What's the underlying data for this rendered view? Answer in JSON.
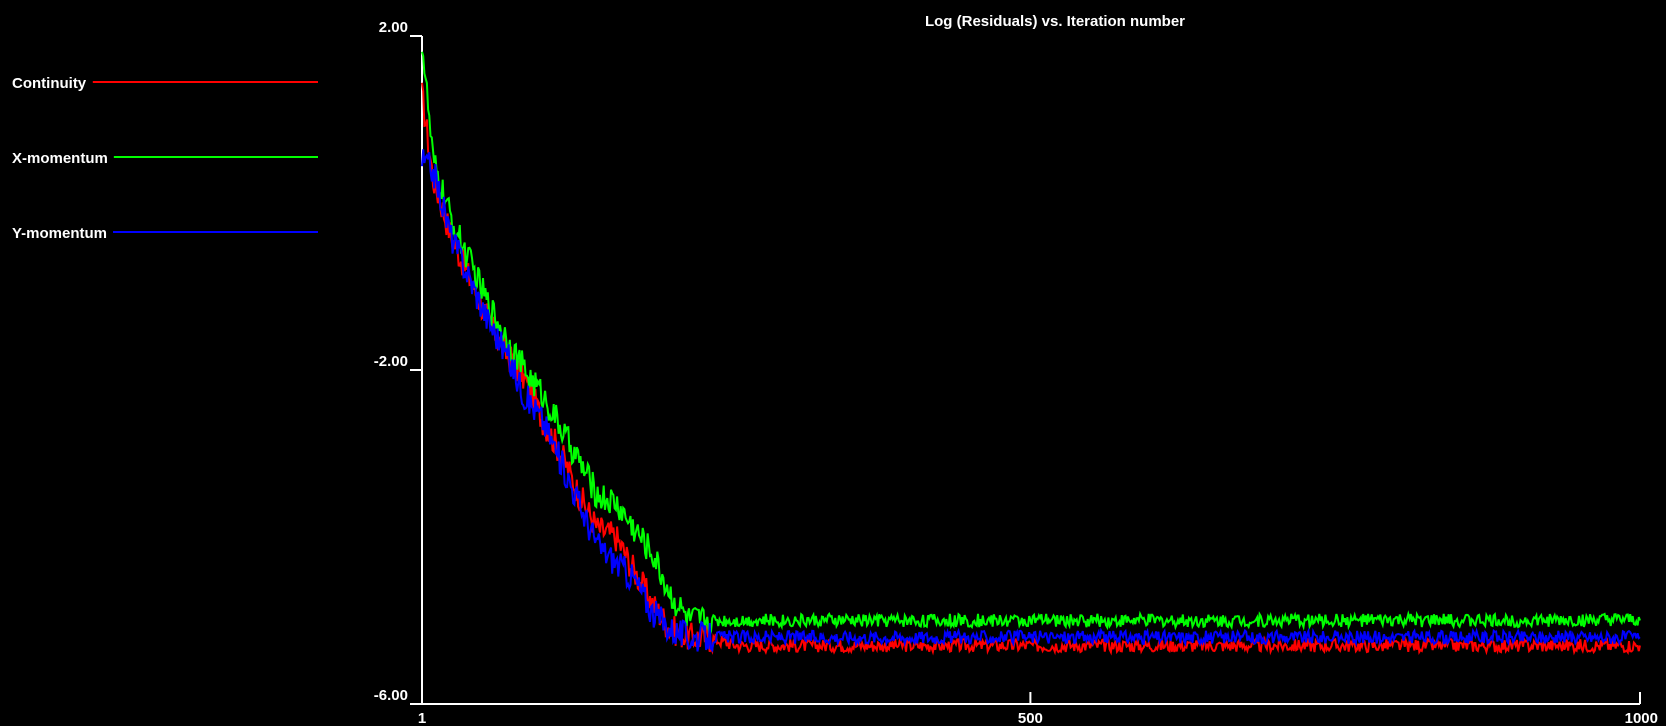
{
  "chart_data": {
    "type": "line",
    "title": "Log (Residuals) vs. Iteration number",
    "xlabel": "",
    "ylabel": "",
    "xlim": [
      1,
      1000
    ],
    "ylim": [
      -6.0,
      2.0
    ],
    "xticks": [
      "1",
      "500",
      "1000"
    ],
    "xtick_values": [
      1,
      500,
      1000
    ],
    "yticks": [
      "2.00",
      "-2.00",
      "-6.00"
    ],
    "ytick_values": [
      2.0,
      -2.0,
      -6.0
    ],
    "grid": false,
    "legend_position": "left",
    "background": "#000000",
    "axis_color": "#ffffff",
    "x": [
      1,
      10,
      25,
      40,
      55,
      70,
      85,
      100,
      115,
      130,
      145,
      160,
      175,
      190,
      205,
      220,
      235,
      260,
      300,
      350,
      400,
      450,
      500,
      550,
      600,
      650,
      700,
      750,
      800,
      850,
      900,
      950,
      1000
    ],
    "series": [
      {
        "name": "Continuity",
        "color": "#ff0000",
        "values": [
          1.3,
          0.3,
          -0.4,
          -0.9,
          -1.4,
          -1.8,
          -2.1,
          -2.6,
          -3.0,
          -3.5,
          -3.9,
          -4.0,
          -4.4,
          -4.8,
          -5.1,
          -5.2,
          -5.2,
          -5.3,
          -5.3,
          -5.3,
          -5.3,
          -5.3,
          -5.3,
          -5.3,
          -5.3,
          -5.3,
          -5.3,
          -5.3,
          -5.3,
          -5.3,
          -5.3,
          -5.3,
          -5.3
        ]
      },
      {
        "name": "X-momentum",
        "color": "#00ff00",
        "values": [
          1.95,
          0.5,
          -0.2,
          -0.7,
          -1.2,
          -1.6,
          -2.0,
          -2.3,
          -2.7,
          -3.1,
          -3.5,
          -3.6,
          -3.9,
          -4.2,
          -4.7,
          -5.0,
          -5.0,
          -5.0,
          -5.0,
          -5.0,
          -5.0,
          -5.0,
          -5.0,
          -5.0,
          -5.0,
          -5.0,
          -5.0,
          -5.0,
          -5.0,
          -5.0,
          -5.0,
          -5.0,
          -5.0
        ]
      },
      {
        "name": "Y-momentum",
        "color": "#0000ff",
        "values": [
          0.5,
          0.4,
          -0.4,
          -0.9,
          -1.4,
          -1.8,
          -2.3,
          -2.6,
          -3.1,
          -3.6,
          -4.1,
          -4.3,
          -4.5,
          -4.9,
          -5.1,
          -5.2,
          -5.2,
          -5.2,
          -5.2,
          -5.2,
          -5.2,
          -5.2,
          -5.2,
          -5.2,
          -5.2,
          -5.2,
          -5.2,
          -5.2,
          -5.2,
          -5.2,
          -5.2,
          -5.2,
          -5.2
        ]
      }
    ]
  }
}
